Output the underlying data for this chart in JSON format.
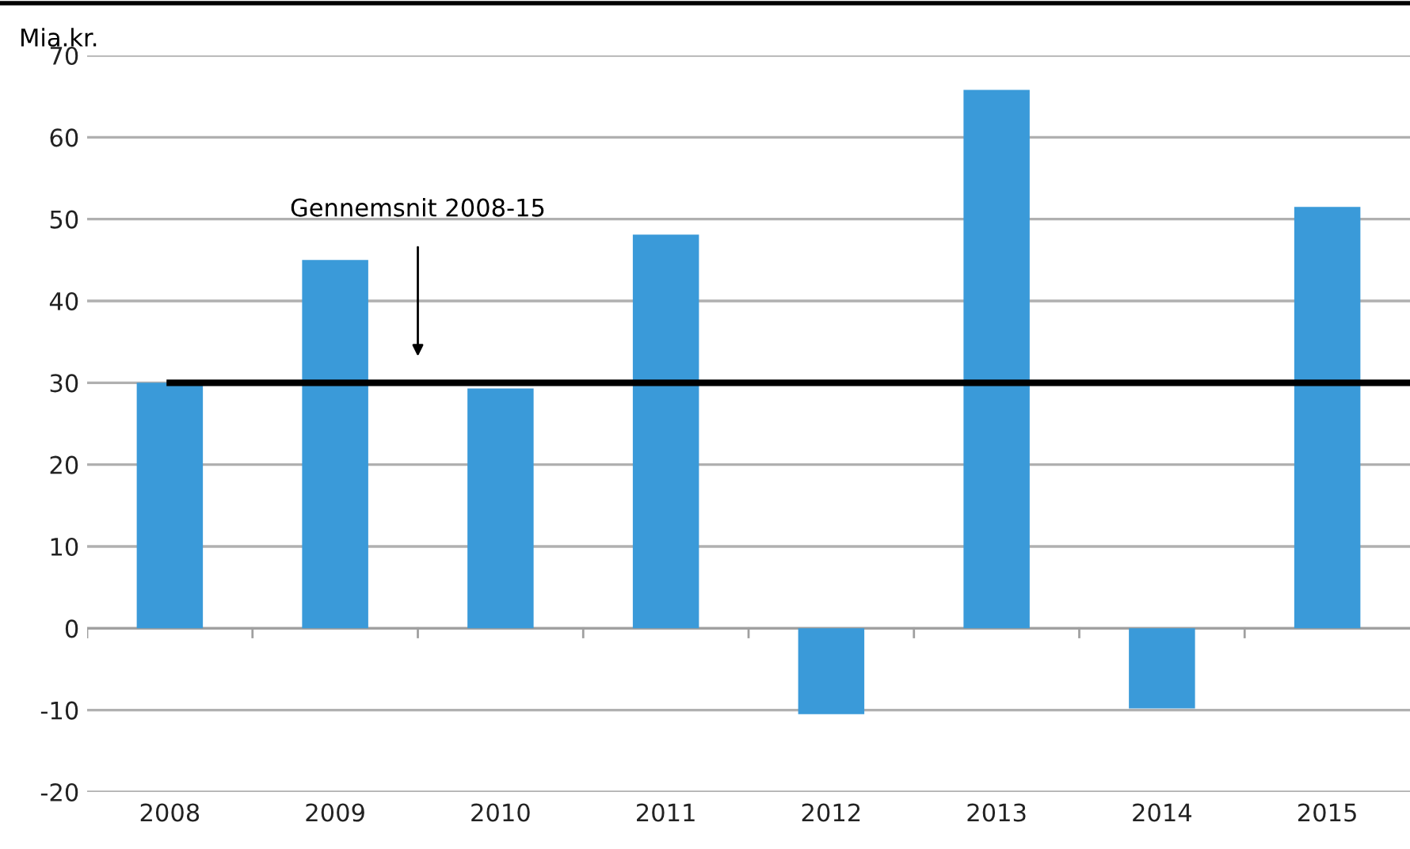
{
  "chart_data": {
    "type": "bar",
    "ylabel": "Mia.kr.",
    "categories": [
      "2008",
      "2009",
      "2010",
      "2011",
      "2012",
      "2013",
      "2014",
      "2015"
    ],
    "values": [
      30,
      45.0,
      29.3,
      48.1,
      -10.5,
      65.8,
      -9.8,
      51.5
    ],
    "color": "#3a9ad9",
    "ylim": [
      -20,
      70
    ],
    "yticks": [
      -20,
      -10,
      0,
      10,
      20,
      30,
      40,
      50,
      60,
      70
    ],
    "grid": "y",
    "ref_lines": [
      {
        "axis": "y",
        "value": 30,
        "label": "Gennemsnit 2008-15",
        "color": "#000000",
        "line_style": "solid"
      }
    ]
  }
}
